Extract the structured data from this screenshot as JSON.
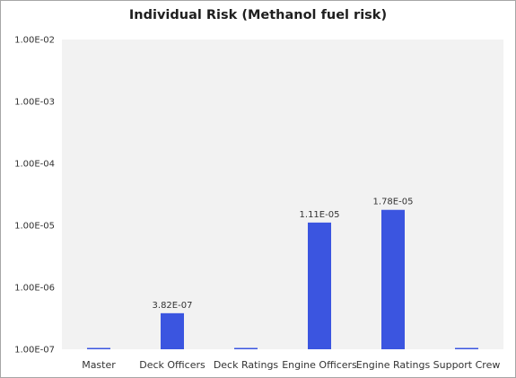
{
  "chart_data": {
    "type": "bar",
    "title": "Individual Risk (Methanol fuel risk)",
    "xlabel": "",
    "ylabel": "",
    "yscale": "log",
    "ylim": [
      1e-07,
      0.01
    ],
    "yticks": [
      1e-07,
      1e-06,
      1e-05,
      0.0001,
      0.001,
      0.01
    ],
    "ytick_labels": [
      "1.00E-07",
      "1.00E-06",
      "1.00E-05",
      "1.00E-04",
      "1.00E-03",
      "1.00E-02"
    ],
    "categories": [
      "Master",
      "Deck Officers",
      "Deck Ratings",
      "Engine Officers",
      "Engine Ratings",
      "Support Crew"
    ],
    "values": [
      1e-07,
      3.82e-07,
      1e-07,
      1.11e-05,
      1.78e-05,
      1e-07
    ],
    "data_labels": [
      "",
      "3.82E-07",
      "",
      "1.11E-05",
      "1.78E-05",
      ""
    ],
    "bar_color": "#3b55e0",
    "plot_background": "#f2f2f2",
    "grid": false,
    "legend": "none"
  }
}
